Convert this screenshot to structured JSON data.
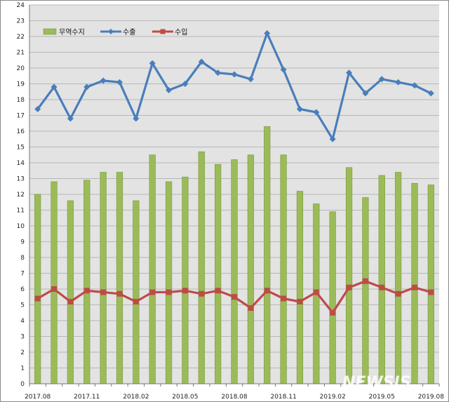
{
  "chart_data": {
    "type": "bar",
    "categories": [
      "2017.08",
      "2017.09",
      "2017.10",
      "2017.11",
      "2017.12",
      "2018.01",
      "2018.02",
      "2018.03",
      "2018.04",
      "2018.05",
      "2018.06",
      "2018.07",
      "2018.08",
      "2018.09",
      "2018.10",
      "2018.11",
      "2018.12",
      "2019.01",
      "2019.02",
      "2019.03",
      "2019.04",
      "2019.05",
      "2019.06",
      "2019.07",
      "2019.08"
    ],
    "x_tick_labels": [
      "2017.08",
      "",
      "",
      "2017.11",
      "",
      "",
      "2018.02",
      "",
      "",
      "2018.05",
      "",
      "",
      "2018.08",
      "",
      "",
      "2018.11",
      "",
      "",
      "2019.02",
      "",
      "",
      "2019.05",
      "",
      "",
      "2019.08"
    ],
    "series": [
      {
        "name": "무역수지",
        "type": "bar",
        "color": "#9bbb59",
        "values": [
          12.0,
          12.8,
          11.6,
          12.9,
          13.4,
          13.4,
          11.6,
          14.5,
          12.8,
          13.1,
          14.7,
          13.9,
          14.2,
          14.5,
          16.3,
          14.5,
          12.2,
          11.4,
          10.9,
          13.7,
          11.8,
          13.2,
          13.4,
          12.7,
          12.6
        ]
      },
      {
        "name": "수출",
        "type": "line",
        "color": "#4a7ebb",
        "values": [
          17.4,
          18.8,
          16.8,
          18.8,
          19.2,
          19.1,
          16.8,
          20.3,
          18.6,
          19.0,
          20.4,
          19.7,
          19.6,
          19.3,
          22.2,
          19.9,
          17.4,
          17.2,
          15.5,
          19.7,
          18.4,
          19.3,
          19.1,
          18.9,
          18.4
        ]
      },
      {
        "name": "수입",
        "type": "line",
        "color": "#be4b48",
        "values": [
          5.4,
          6.0,
          5.2,
          5.9,
          5.8,
          5.7,
          5.2,
          5.8,
          5.8,
          5.9,
          5.7,
          5.9,
          5.5,
          4.8,
          5.9,
          5.4,
          5.2,
          5.8,
          4.5,
          6.1,
          6.5,
          6.1,
          5.7,
          6.1,
          5.8
        ]
      }
    ],
    "y_ticks": [
      0,
      1,
      2,
      3,
      4,
      5,
      6,
      7,
      8,
      9,
      10,
      11,
      12,
      13,
      14,
      15,
      16,
      17,
      18,
      19,
      20,
      21,
      22,
      23,
      24
    ],
    "ylim": [
      0,
      24
    ],
    "grid": true,
    "legend": "top-left"
  },
  "watermark": "NEWSIS"
}
